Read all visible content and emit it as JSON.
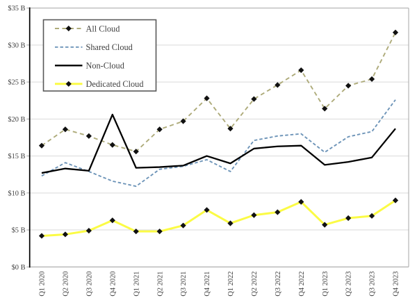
{
  "chart_data": {
    "type": "line",
    "title": "",
    "xlabel": "",
    "ylabel": "",
    "categories": [
      "Q1 2020",
      "Q2 2020",
      "Q3 2020",
      "Q4 2020",
      "Q1 2021",
      "Q2 2021",
      "Q3 2021",
      "Q4 2021",
      "Q1 2022",
      "Q2 2022",
      "Q3 2022",
      "Q4 2022",
      "Q1 2023",
      "Q2 2023",
      "Q3 2023",
      "Q4 2023"
    ],
    "ylim": [
      0,
      35
    ],
    "y_step": 5,
    "y_tick_labels": [
      "$0 B",
      "$5 B",
      "$10 B",
      "$15 B",
      "$20 B",
      "$25 B",
      "$30 B",
      "$35 B"
    ],
    "grid": true,
    "legend": {
      "position": "top-left"
    },
    "series": [
      {
        "name": "All Cloud",
        "color": "#AEAB7A",
        "line_style": "dashed",
        "marker": "diamond",
        "marker_color": "#111111",
        "values": [
          16.4,
          18.6,
          17.7,
          16.5,
          15.6,
          18.6,
          19.7,
          22.8,
          18.7,
          22.7,
          24.6,
          26.6,
          21.4,
          24.5,
          25.4,
          31.7
        ]
      },
      {
        "name": "Shared Cloud",
        "color": "#6D94B8",
        "line_style": "dashed",
        "marker": "none",
        "marker_color": "",
        "values": [
          12.3,
          14.1,
          12.9,
          11.6,
          10.9,
          13.2,
          13.6,
          14.5,
          12.9,
          17.1,
          17.7,
          18.0,
          15.5,
          17.6,
          18.3,
          22.6
        ]
      },
      {
        "name": "Non-Cloud",
        "color": "#000000",
        "line_style": "solid",
        "marker": "none",
        "marker_color": "",
        "values": [
          12.7,
          13.3,
          13.0,
          20.6,
          13.4,
          13.5,
          13.7,
          15.0,
          14.0,
          16.0,
          16.3,
          16.4,
          13.8,
          14.2,
          14.8,
          18.7
        ]
      },
      {
        "name": "Dedicated Cloud",
        "color": "#FBFB45",
        "line_style": "solid",
        "marker": "diamond",
        "marker_color": "#111111",
        "values": [
          4.2,
          4.4,
          4.9,
          6.3,
          4.8,
          4.8,
          5.6,
          7.7,
          5.9,
          7.0,
          7.4,
          8.8,
          5.7,
          6.6,
          6.9,
          9.0
        ]
      }
    ],
    "colors": {
      "grid": "#D9D9D9",
      "axis_y": "#000000",
      "axis_x": "#A6A6A6",
      "plot_border": "#A6A6A6",
      "tick_text": "#404040",
      "legend_border": "#595959",
      "legend_text": "#3F3F3F"
    }
  }
}
